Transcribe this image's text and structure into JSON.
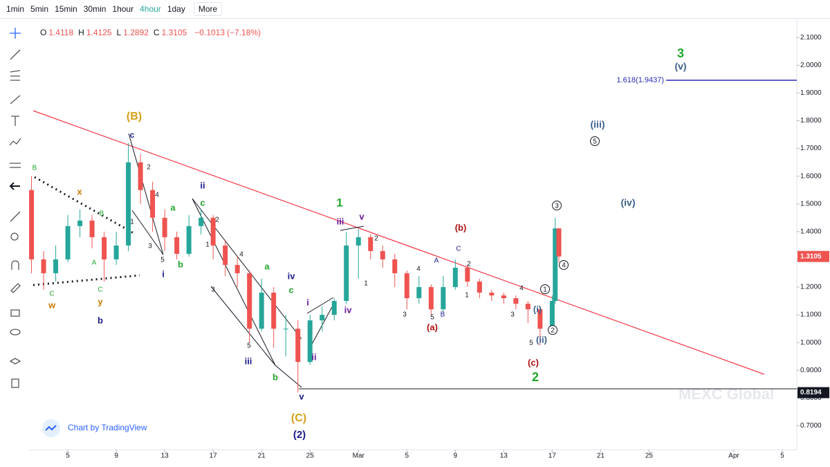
{
  "toolbar": {
    "intervals": [
      "1min",
      "5min",
      "15min",
      "30min",
      "1hour",
      "4hour",
      "1day"
    ],
    "active": "4hour",
    "more": "More"
  },
  "legend": {
    "o_label": "O",
    "open": "1.4118",
    "h_label": "H",
    "high": "1.4125",
    "l_label": "L",
    "low": "1.2892",
    "c_label": "C",
    "close": "1.3105",
    "change": "−0.1013",
    "change_pct": "(−7.18%)"
  },
  "chart_data": {
    "type": "candlestick",
    "up_color": "#26a69a",
    "down_color": "#ef5350",
    "x": [
      2,
      3,
      4,
      5,
      6,
      7,
      8,
      9,
      10,
      11,
      12,
      13,
      14,
      15,
      16,
      17,
      18,
      19,
      20,
      21,
      22,
      23,
      24,
      25,
      26,
      27,
      28,
      29,
      30,
      31,
      32,
      33,
      34,
      35,
      36,
      37,
      38,
      39,
      40,
      41,
      42,
      43,
      44,
      45,
      45.25,
      45.55
    ],
    "open": [
      1.55,
      1.3,
      1.25,
      1.3,
      1.42,
      1.44,
      1.38,
      1.3,
      1.35,
      1.65,
      1.55,
      1.45,
      1.38,
      1.32,
      1.42,
      1.45,
      1.35,
      1.28,
      1.25,
      1.05,
      1.18,
      1.05,
      1.05,
      0.93,
      1.08,
      1.1,
      1.15,
      1.35,
      1.38,
      1.33,
      1.3,
      1.25,
      1.16,
      1.2,
      1.12,
      1.2,
      1.27,
      1.22,
      1.18,
      1.17,
      1.16,
      1.14,
      1.12,
      1.05,
      1.15,
      1.4118
    ],
    "high": [
      1.6,
      1.33,
      1.35,
      1.46,
      1.48,
      1.46,
      1.4,
      1.4,
      1.72,
      1.68,
      1.58,
      1.48,
      1.4,
      1.46,
      1.48,
      1.46,
      1.37,
      1.31,
      1.26,
      1.23,
      1.2,
      1.1,
      1.08,
      1.1,
      1.13,
      1.16,
      1.4,
      1.41,
      1.39,
      1.35,
      1.32,
      1.26,
      1.24,
      1.21,
      1.24,
      1.3,
      1.28,
      1.23,
      1.19,
      1.18,
      1.17,
      1.15,
      1.13,
      1.17,
      1.45,
      1.4125
    ],
    "low": [
      1.25,
      1.19,
      1.22,
      1.29,
      1.38,
      1.34,
      1.22,
      1.28,
      1.33,
      1.5,
      1.4,
      1.33,
      1.3,
      1.31,
      1.39,
      1.3,
      1.24,
      1.2,
      1.0,
      1.04,
      0.98,
      0.95,
      0.82,
      0.92,
      1.04,
      1.08,
      1.14,
      1.23,
      1.3,
      1.27,
      1.2,
      1.12,
      1.14,
      1.1,
      1.11,
      1.19,
      1.2,
      1.16,
      1.15,
      1.14,
      1.12,
      1.07,
      0.99,
      1.04,
      1.14,
      1.2892
    ],
    "close": [
      1.3,
      1.25,
      1.3,
      1.42,
      1.44,
      1.38,
      1.3,
      1.35,
      1.65,
      1.55,
      1.45,
      1.38,
      1.32,
      1.42,
      1.45,
      1.35,
      1.28,
      1.25,
      1.05,
      1.18,
      1.05,
      1.05,
      0.93,
      1.08,
      1.1,
      1.15,
      1.35,
      1.38,
      1.33,
      1.3,
      1.25,
      1.16,
      1.2,
      1.12,
      1.2,
      1.27,
      1.22,
      1.18,
      1.17,
      1.16,
      1.14,
      1.12,
      1.05,
      1.15,
      1.4118,
      1.3105
    ],
    "xlim": [
      2.14,
      65.2
    ],
    "ylim": [
      0.6136,
      2.1681
    ],
    "xticks": [
      5,
      9,
      13,
      17,
      21,
      25,
      {
        "value": 29,
        "label": "Mar"
      },
      {
        "value": 33,
        "label": "5"
      },
      {
        "value": 37,
        "label": "9"
      },
      {
        "value": 41,
        "label": "13"
      },
      {
        "value": 45,
        "label": "17"
      },
      {
        "value": 49,
        "label": "21"
      },
      {
        "value": 53,
        "label": "25"
      },
      {
        "value": 60,
        "label": "Apr"
      },
      {
        "value": 64,
        "label": "5"
      }
    ],
    "yticks": [
      {
        "value": 2.1,
        "label": "2.1000"
      },
      {
        "value": 2.0,
        "label": "2.0000"
      },
      {
        "value": 1.9,
        "label": "1.9000"
      },
      {
        "value": 1.8,
        "label": "1.8000"
      },
      {
        "value": 1.7,
        "label": "1.7000"
      },
      {
        "value": 1.6,
        "label": "1.6000"
      },
      {
        "value": 1.5,
        "label": "1.5000"
      },
      {
        "value": 1.4,
        "label": "1.4000"
      },
      {
        "value": 1.3,
        "label": "1.3000"
      },
      {
        "value": 1.2,
        "label": "1.2000"
      },
      {
        "value": 1.1,
        "label": "1.1000"
      },
      {
        "value": 1.0,
        "label": "1.0000"
      },
      {
        "value": 0.9,
        "label": "0.9000"
      },
      {
        "value": 0.8,
        "label": "0.8000"
      },
      {
        "value": 0.7,
        "label": "0.7000"
      }
    ],
    "price_tags": [
      {
        "value": 1.3105,
        "label": "1.3105",
        "color": "#ef5350"
      },
      {
        "value": 0.8194,
        "label": "0.8194",
        "color": "#131722"
      }
    ],
    "fib_label": "1.618(1.9437)",
    "annotations": [
      "(B)",
      "c",
      "2",
      "4",
      "1",
      "3",
      "5",
      "i",
      "a",
      "b",
      "ii",
      "c",
      "2",
      "1",
      "4",
      "3",
      "5",
      "iii",
      "a",
      "b",
      "iv",
      "c",
      "i",
      "ii",
      "v",
      "(C)",
      "(2)",
      "1",
      "iii",
      "v",
      "iv",
      "2",
      "1",
      "4",
      "3",
      "5",
      "A",
      "B",
      "(a)",
      "(b)",
      "C",
      "2",
      "1",
      "4",
      "3",
      "5",
      "(i)",
      "(ii)",
      "(c)",
      "2",
      "3",
      "(v)",
      "(iii)",
      "(iv)",
      "1",
      "2",
      "3",
      "4",
      "5",
      "B",
      "x",
      "B",
      "A",
      "C",
      "w",
      "C",
      "y",
      "b"
    ]
  },
  "watermark": "MEXC Global",
  "attribution": "Chart by TradingView"
}
